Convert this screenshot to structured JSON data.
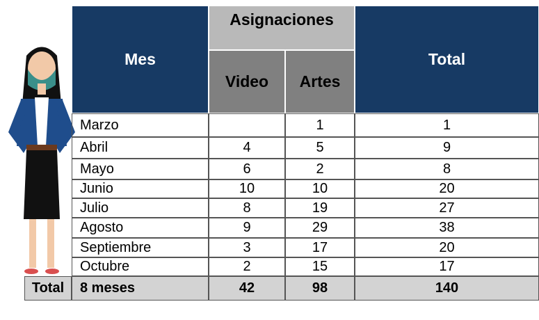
{
  "header": {
    "month": "Mes",
    "group": "Asignaciones",
    "video": "Video",
    "artes": "Artes",
    "total": "Total"
  },
  "table": {
    "rows": [
      [
        "Marzo",
        null,
        1,
        1
      ],
      [
        "Abril",
        4,
        5,
        9
      ],
      [
        "Mayo",
        6,
        2,
        8
      ],
      [
        "Junio",
        10,
        10,
        20
      ],
      [
        "Julio",
        8,
        19,
        27
      ],
      [
        "Agosto",
        9,
        29,
        38
      ],
      [
        "Septiembre",
        3,
        17,
        20
      ],
      [
        "Octubre",
        2,
        15,
        17
      ]
    ]
  },
  "footer": {
    "label": "Total",
    "months": "8 meses",
    "video": 42,
    "artes": 98,
    "total": 140
  }
}
